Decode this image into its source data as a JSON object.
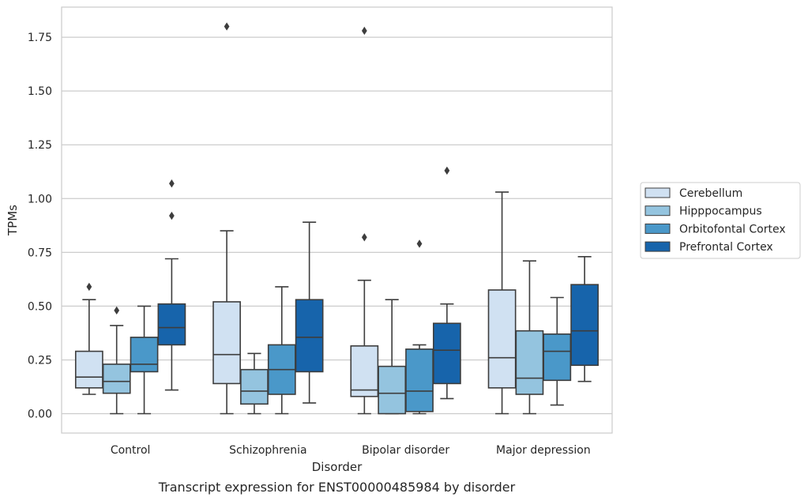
{
  "caption": "Transcript expression for ENST00000485984 by disorder",
  "chart_data": {
    "type": "box",
    "xlabel": "Disorder",
    "ylabel": "TPMs",
    "ylim": [
      -0.09,
      1.89
    ],
    "yticks": [
      0.0,
      0.25,
      0.5,
      0.75,
      1.0,
      1.25,
      1.5,
      1.75
    ],
    "ytick_labels": [
      "0.00",
      "0.25",
      "0.50",
      "0.75",
      "1.00",
      "1.25",
      "1.50",
      "1.75"
    ],
    "grid": true,
    "legend_position": "right",
    "categories": [
      "Control",
      "Schizophrenia",
      "Bipolar disorder",
      "Major depression"
    ],
    "series": [
      {
        "name": "Cerebellum",
        "color": "#d0e1f2",
        "boxes": [
          {
            "whislo": 0.09,
            "q1": 0.12,
            "med": 0.17,
            "q3": 0.29,
            "whishi": 0.53,
            "fliers": [
              0.59
            ]
          },
          {
            "whislo": 0.0,
            "q1": 0.14,
            "med": 0.275,
            "q3": 0.52,
            "whishi": 0.85,
            "fliers": [
              1.8
            ]
          },
          {
            "whislo": 0.0,
            "q1": 0.08,
            "med": 0.11,
            "q3": 0.315,
            "whishi": 0.62,
            "fliers": [
              0.82,
              1.78
            ]
          },
          {
            "whislo": 0.0,
            "q1": 0.12,
            "med": 0.26,
            "q3": 0.575,
            "whishi": 1.03,
            "fliers": []
          }
        ]
      },
      {
        "name": "Hipppocampus",
        "color": "#94c4df",
        "boxes": [
          {
            "whislo": 0.0,
            "q1": 0.095,
            "med": 0.15,
            "q3": 0.23,
            "whishi": 0.41,
            "fliers": [
              0.48
            ]
          },
          {
            "whislo": 0.0,
            "q1": 0.045,
            "med": 0.105,
            "q3": 0.205,
            "whishi": 0.28,
            "fliers": []
          },
          {
            "whislo": 0.0,
            "q1": 0.0,
            "med": 0.095,
            "q3": 0.22,
            "whishi": 0.53,
            "fliers": []
          },
          {
            "whislo": 0.0,
            "q1": 0.09,
            "med": 0.165,
            "q3": 0.385,
            "whishi": 0.71,
            "fliers": []
          }
        ]
      },
      {
        "name": "Orbitofontal Cortex",
        "color": "#4a98c9",
        "boxes": [
          {
            "whislo": 0.0,
            "q1": 0.195,
            "med": 0.23,
            "q3": 0.355,
            "whishi": 0.5,
            "fliers": []
          },
          {
            "whislo": 0.0,
            "q1": 0.09,
            "med": 0.205,
            "q3": 0.32,
            "whishi": 0.59,
            "fliers": []
          },
          {
            "whislo": 0.0,
            "q1": 0.01,
            "med": 0.105,
            "q3": 0.3,
            "whishi": 0.32,
            "fliers": [
              0.79
            ]
          },
          {
            "whislo": 0.04,
            "q1": 0.155,
            "med": 0.29,
            "q3": 0.37,
            "whishi": 0.54,
            "fliers": []
          }
        ]
      },
      {
        "name": "Prefrontal Cortex",
        "color": "#1764ab",
        "boxes": [
          {
            "whislo": 0.11,
            "q1": 0.32,
            "med": 0.4,
            "q3": 0.51,
            "whishi": 0.72,
            "fliers": [
              0.92,
              1.07
            ]
          },
          {
            "whislo": 0.05,
            "q1": 0.195,
            "med": 0.355,
            "q3": 0.53,
            "whishi": 0.89,
            "fliers": []
          },
          {
            "whislo": 0.07,
            "q1": 0.14,
            "med": 0.295,
            "q3": 0.42,
            "whishi": 0.51,
            "fliers": [
              1.13
            ]
          },
          {
            "whislo": 0.15,
            "q1": 0.225,
            "med": 0.385,
            "q3": 0.6,
            "whishi": 0.73,
            "fliers": []
          }
        ]
      }
    ]
  }
}
